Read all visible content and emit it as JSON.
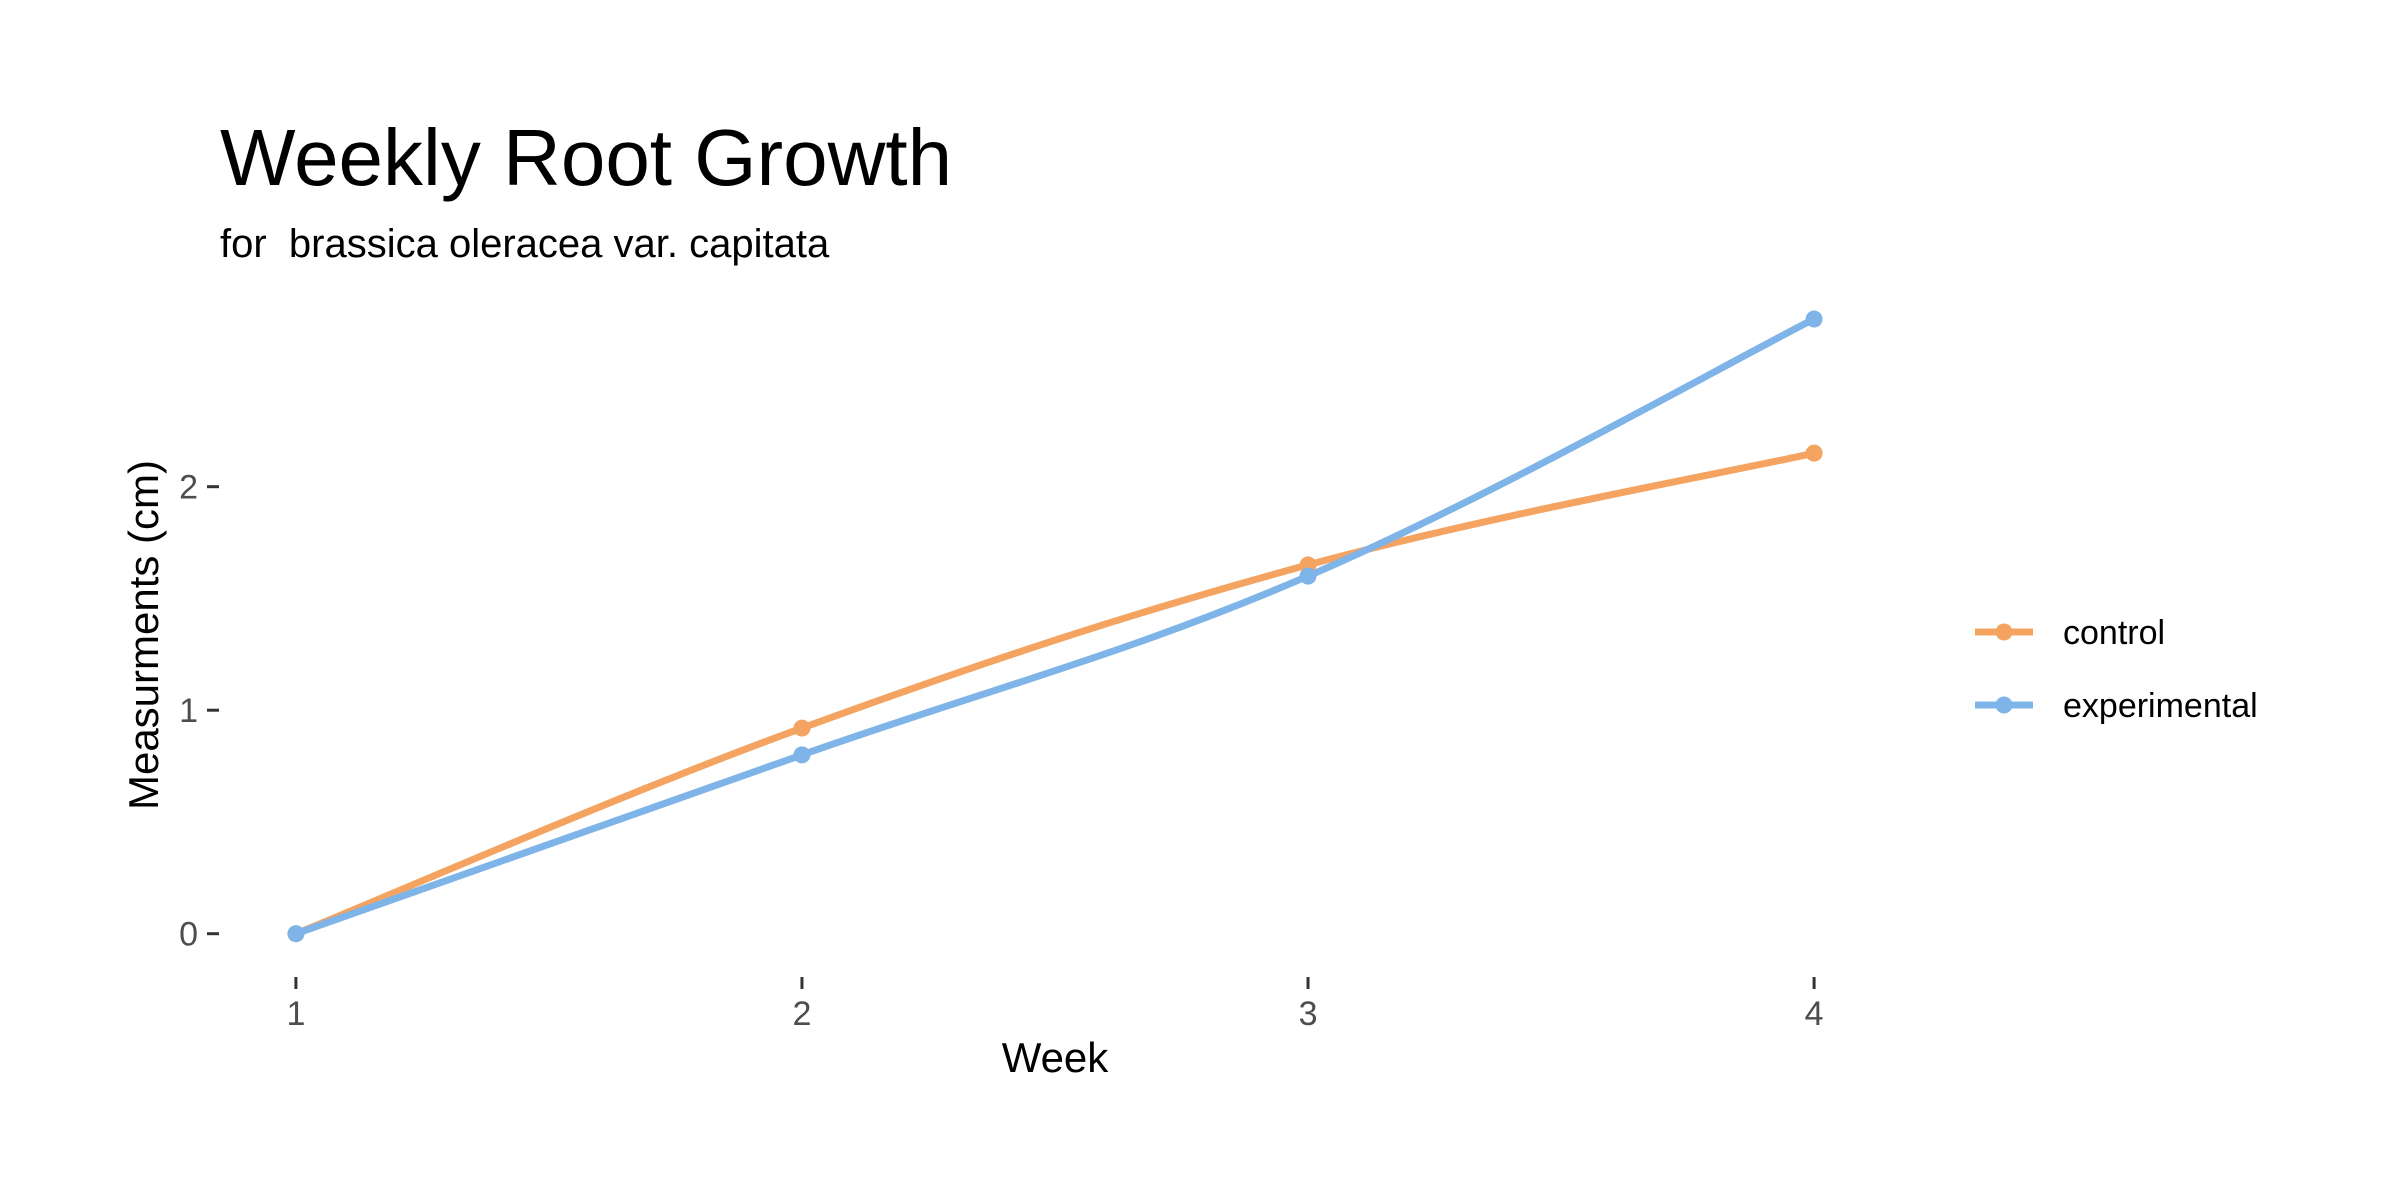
{
  "chart_data": {
    "type": "line",
    "title": "Weekly Root Growth",
    "subtitle": "for  brassica oleracea var. capitata",
    "xlabel": "Week",
    "ylabel": "Measurments (cm)",
    "x": [
      1,
      2,
      3,
      4
    ],
    "x_ticks": [
      "1",
      "2",
      "3",
      "4"
    ],
    "y_ticks": [
      0,
      1,
      2
    ],
    "xlim": [
      0.85,
      4.15
    ],
    "ylim": [
      -0.14,
      2.88
    ],
    "grid": false,
    "smooth": true,
    "legend_position": "right",
    "series": [
      {
        "name": "control",
        "color": "#F4A460",
        "values": [
          0,
          0.92,
          1.65,
          2.15
        ]
      },
      {
        "name": "experimental",
        "color": "#7EB4E8",
        "values": [
          0,
          0.8,
          1.6,
          2.75
        ]
      }
    ]
  }
}
